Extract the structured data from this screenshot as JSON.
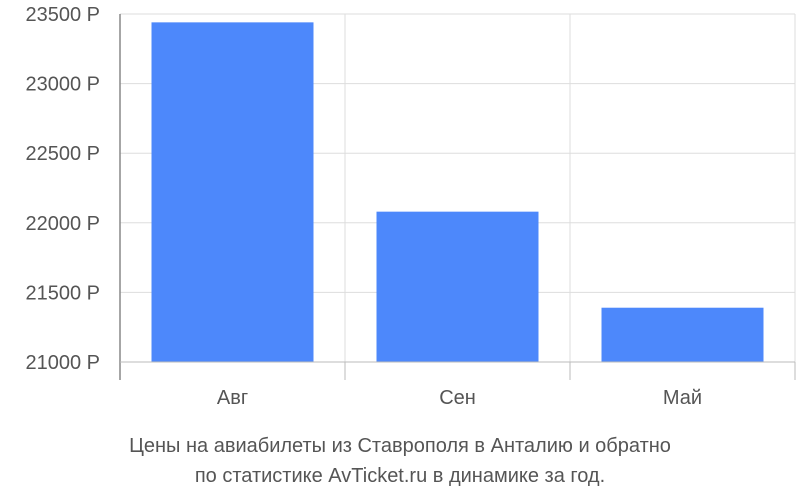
{
  "chart_data": {
    "type": "bar",
    "categories": [
      "Авг",
      "Сен",
      "Май"
    ],
    "values": [
      23440,
      22080,
      21390
    ],
    "ylim": [
      21000,
      23500
    ],
    "yticks": [
      21000,
      21500,
      22000,
      22500,
      23000,
      23500
    ],
    "ytick_suffix": " Р",
    "grid": true,
    "bar_color": "#4d88fb",
    "title_lines": [
      "Цены на авиабилеты из Ставрополя в Анталию и обратно",
      "по статистике AvTicket.ru в динамике за год."
    ]
  }
}
